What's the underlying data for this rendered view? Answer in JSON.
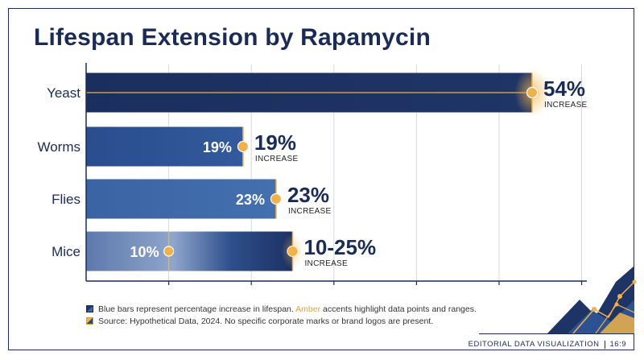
{
  "title": "Lifespan Extension by Rapamycin",
  "chart_data": {
    "type": "bar",
    "orientation": "horizontal",
    "categories": [
      "Yeast",
      "Worms",
      "Flies",
      "Mice"
    ],
    "values": [
      54,
      19,
      23,
      25
    ],
    "range_low": [
      null,
      null,
      null,
      10
    ],
    "inner_labels": [
      "",
      "19%",
      "23%",
      "10%"
    ],
    "value_labels": [
      "54%",
      "19%",
      "23%",
      "10-25%"
    ],
    "sub_labels": [
      "INCREASE",
      "INCREASE",
      "INCREASE",
      "INCREASE"
    ],
    "xlim": [
      0,
      60
    ],
    "grid": true,
    "colors": {
      "bar_dark": "#1e3466",
      "bar_mid": "#2c5293",
      "bar_light": "#3c66a6",
      "amber": "#f0b04a",
      "text_dark": "#1a2b55"
    }
  },
  "legend": {
    "line1_prefix": "Blue bars represent percentage increase in lifespan.",
    "line1_amber": "Amber",
    "line1_suffix": "accents highlight data points and ranges.",
    "line2": "Source: Hypothetical Data, 2024. No specific corporate marks or brand logos are present."
  },
  "footer": {
    "label": "EDITORIAL DATA VISUALIZATION",
    "ratio": "16:9"
  }
}
